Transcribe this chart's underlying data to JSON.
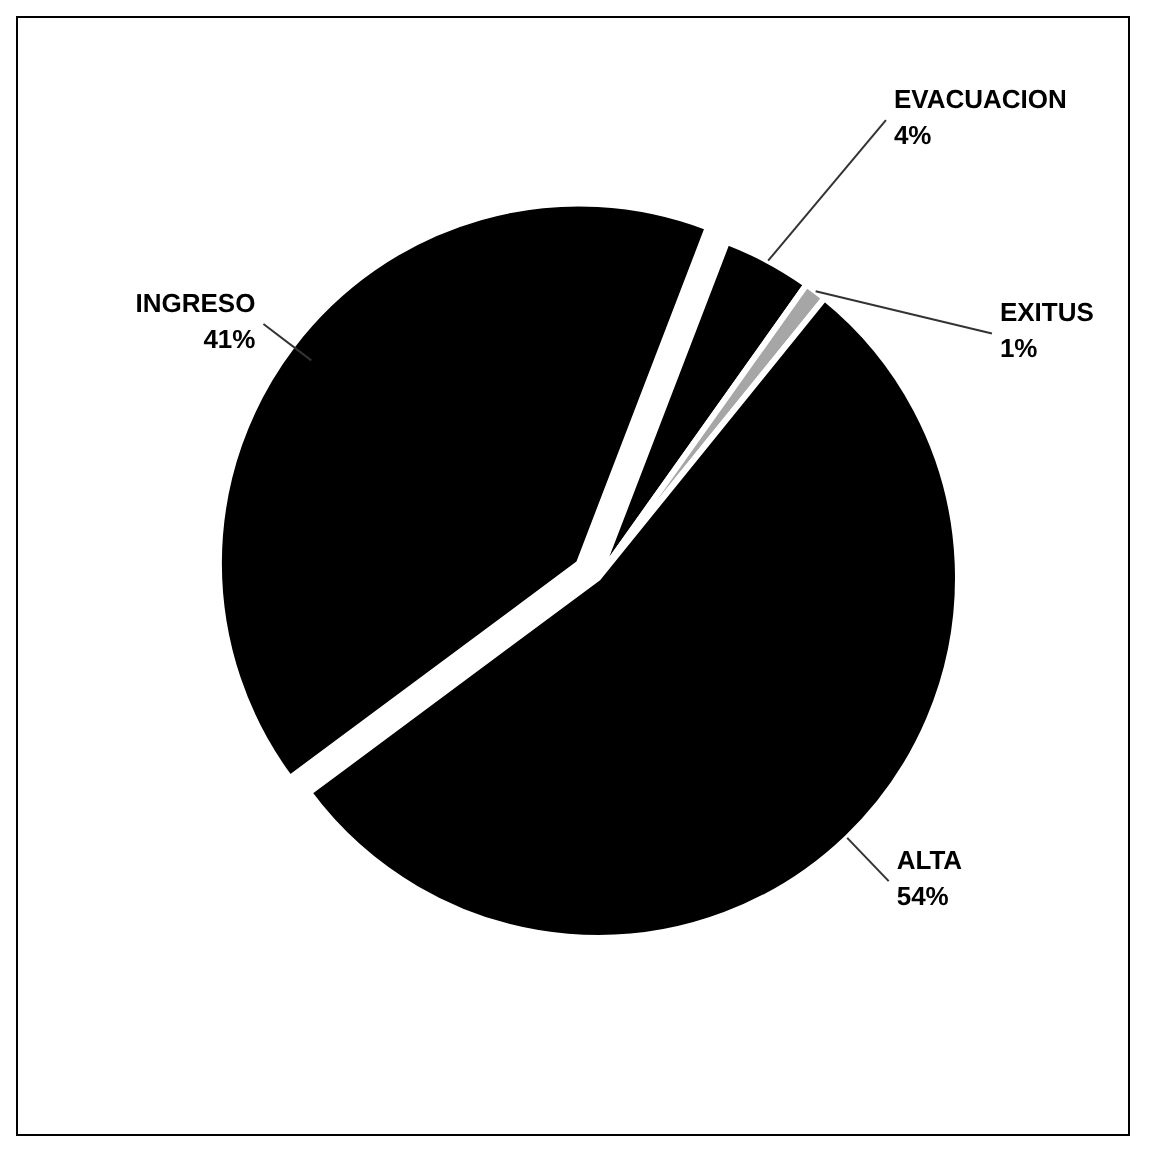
{
  "chart_data": {
    "type": "pie",
    "categories": [
      "EVACUACION",
      "EXITUS",
      "ALTA",
      "INGRESO"
    ],
    "values": [
      4,
      1,
      54,
      41
    ],
    "value_labels": [
      "4%",
      "1%",
      "54%",
      "41%"
    ],
    "colors": [
      "#000000",
      "#a6a6a6",
      "#000000",
      "#000000"
    ]
  }
}
